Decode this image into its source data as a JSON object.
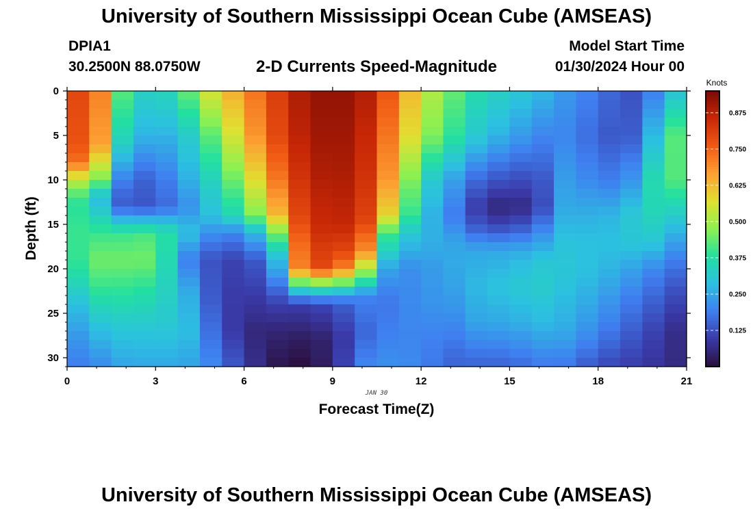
{
  "header": {
    "title": "University of Southern Mississippi Ocean Cube (AMSEAS)",
    "station": "DPIA1",
    "coordinates": "30.2500N  88.0750W",
    "subtitle": "2-D Currents Speed-Magnitude",
    "start_label": "Model Start Time",
    "start_value": "01/30/2024 Hour 00"
  },
  "footer": {
    "title": "University of Southern Mississippi Ocean Cube (AMSEAS)"
  },
  "chart_data": {
    "type": "heatmap",
    "title": "2-D Currents Speed-Magnitude",
    "xlabel": "Forecast Time(Z)",
    "ylabel": "Depth (ft)",
    "date_label": "JAN 30",
    "xlim": [
      0,
      21
    ],
    "ylim": [
      0,
      31
    ],
    "x_ticks": [
      0,
      3,
      6,
      9,
      12,
      15,
      18,
      21
    ],
    "y_ticks": [
      0,
      5,
      10,
      15,
      20,
      25,
      30
    ],
    "colorbar": {
      "label": "Knots",
      "range": [
        0.0,
        0.95
      ],
      "ticks": [
        "0.125",
        "0.250",
        "0.375",
        "0.500",
        "0.625",
        "0.750",
        "0.875"
      ],
      "colors": [
        "#2a0f3a",
        "#3a3aa8",
        "#3f7ff0",
        "#2cc0e0",
        "#22e0a0",
        "#8ef050",
        "#e0e030",
        "#fca032",
        "#f05a14",
        "#c82806",
        "#7a0a04"
      ]
    },
    "resolution": {
      "hours_per_cell": 0.75,
      "feet_per_cell": 1
    },
    "control_columns": {
      "hours": [
        0,
        1,
        2,
        3,
        4,
        5,
        6,
        7,
        8,
        9,
        10,
        11,
        12,
        13,
        14,
        15,
        16,
        17,
        18,
        19,
        20,
        21
      ],
      "profiles": [
        [
          [
            0,
            0.82
          ],
          [
            8,
            0.8
          ],
          [
            10,
            0.55
          ],
          [
            13,
            0.42
          ],
          [
            16,
            0.4
          ],
          [
            20,
            0.35
          ],
          [
            24,
            0.25
          ],
          [
            28,
            0.2
          ],
          [
            31,
            0.18
          ]
        ],
        [
          [
            0,
            0.75
          ],
          [
            6,
            0.72
          ],
          [
            10,
            0.5
          ],
          [
            12,
            0.3
          ],
          [
            16,
            0.4
          ],
          [
            19,
            0.45
          ],
          [
            22,
            0.4
          ],
          [
            26,
            0.3
          ],
          [
            31,
            0.2
          ]
        ],
        [
          [
            0,
            0.38
          ],
          [
            5,
            0.3
          ],
          [
            10,
            0.15
          ],
          [
            13,
            0.12
          ],
          [
            16,
            0.4
          ],
          [
            19,
            0.45
          ],
          [
            23,
            0.38
          ],
          [
            27,
            0.3
          ],
          [
            31,
            0.25
          ]
        ],
        [
          [
            0,
            0.3
          ],
          [
            5,
            0.25
          ],
          [
            10,
            0.15
          ],
          [
            13,
            0.14
          ],
          [
            16,
            0.42
          ],
          [
            19,
            0.45
          ],
          [
            23,
            0.36
          ],
          [
            27,
            0.3
          ],
          [
            31,
            0.25
          ]
        ],
        [
          [
            0,
            0.42
          ],
          [
            5,
            0.3
          ],
          [
            10,
            0.25
          ],
          [
            13,
            0.2
          ],
          [
            16,
            0.3
          ],
          [
            19,
            0.2
          ],
          [
            23,
            0.28
          ],
          [
            27,
            0.3
          ],
          [
            31,
            0.25
          ]
        ],
        [
          [
            0,
            0.58
          ],
          [
            5,
            0.45
          ],
          [
            10,
            0.35
          ],
          [
            14,
            0.3
          ],
          [
            16,
            0.2
          ],
          [
            19,
            0.12
          ],
          [
            23,
            0.12
          ],
          [
            27,
            0.15
          ],
          [
            31,
            0.2
          ]
        ],
        [
          [
            0,
            0.68
          ],
          [
            5,
            0.62
          ],
          [
            10,
            0.5
          ],
          [
            14,
            0.38
          ],
          [
            16,
            0.2
          ],
          [
            19,
            0.1
          ],
          [
            23,
            0.08
          ],
          [
            27,
            0.06
          ],
          [
            31,
            0.1
          ]
        ],
        [
          [
            0,
            0.8
          ],
          [
            5,
            0.78
          ],
          [
            10,
            0.7
          ],
          [
            14,
            0.6
          ],
          [
            16,
            0.4
          ],
          [
            19,
            0.2
          ],
          [
            23,
            0.12
          ],
          [
            27,
            0.05
          ],
          [
            31,
            0.02
          ]
        ],
        [
          [
            0,
            0.9
          ],
          [
            5,
            0.88
          ],
          [
            10,
            0.85
          ],
          [
            15,
            0.82
          ],
          [
            17,
            0.8
          ],
          [
            20,
            0.78
          ],
          [
            22,
            0.4
          ],
          [
            24,
            0.1
          ],
          [
            28,
            0.03
          ],
          [
            31,
            0.0
          ]
        ],
        [
          [
            0,
            0.93
          ],
          [
            5,
            0.92
          ],
          [
            10,
            0.9
          ],
          [
            15,
            0.87
          ],
          [
            17,
            0.84
          ],
          [
            20,
            0.8
          ],
          [
            22,
            0.4
          ],
          [
            24,
            0.12
          ],
          [
            28,
            0.05
          ],
          [
            31,
            0.05
          ]
        ],
        [
          [
            0,
            0.9
          ],
          [
            5,
            0.88
          ],
          [
            10,
            0.86
          ],
          [
            15,
            0.84
          ],
          [
            18,
            0.75
          ],
          [
            21,
            0.45
          ],
          [
            23,
            0.2
          ],
          [
            27,
            0.15
          ],
          [
            31,
            0.2
          ]
        ],
        [
          [
            0,
            0.75
          ],
          [
            5,
            0.7
          ],
          [
            10,
            0.65
          ],
          [
            14,
            0.55
          ],
          [
            16,
            0.35
          ],
          [
            20,
            0.2
          ],
          [
            24,
            0.18
          ],
          [
            28,
            0.2
          ],
          [
            31,
            0.22
          ]
        ],
        [
          [
            0,
            0.55
          ],
          [
            5,
            0.5
          ],
          [
            10,
            0.35
          ],
          [
            14,
            0.3
          ],
          [
            16,
            0.28
          ],
          [
            20,
            0.22
          ],
          [
            24,
            0.22
          ],
          [
            28,
            0.2
          ],
          [
            31,
            0.2
          ]
        ],
        [
          [
            0,
            0.45
          ],
          [
            5,
            0.4
          ],
          [
            10,
            0.25
          ],
          [
            14,
            0.2
          ],
          [
            17,
            0.25
          ],
          [
            20,
            0.25
          ],
          [
            24,
            0.22
          ],
          [
            28,
            0.18
          ],
          [
            31,
            0.15
          ]
        ],
        [
          [
            0,
            0.35
          ],
          [
            5,
            0.3
          ],
          [
            10,
            0.15
          ],
          [
            13,
            0.08
          ],
          [
            15,
            0.12
          ],
          [
            18,
            0.25
          ],
          [
            22,
            0.28
          ],
          [
            26,
            0.25
          ],
          [
            31,
            0.15
          ]
        ],
        [
          [
            0,
            0.32
          ],
          [
            5,
            0.25
          ],
          [
            10,
            0.12
          ],
          [
            13,
            0.04
          ],
          [
            15,
            0.1
          ],
          [
            18,
            0.25
          ],
          [
            22,
            0.3
          ],
          [
            26,
            0.25
          ],
          [
            31,
            0.15
          ]
        ],
        [
          [
            0,
            0.28
          ],
          [
            5,
            0.2
          ],
          [
            10,
            0.12
          ],
          [
            13,
            0.1
          ],
          [
            16,
            0.2
          ],
          [
            19,
            0.3
          ],
          [
            22,
            0.32
          ],
          [
            26,
            0.28
          ],
          [
            31,
            0.18
          ]
        ],
        [
          [
            0,
            0.22
          ],
          [
            5,
            0.2
          ],
          [
            10,
            0.25
          ],
          [
            14,
            0.28
          ],
          [
            17,
            0.3
          ],
          [
            20,
            0.3
          ],
          [
            23,
            0.28
          ],
          [
            27,
            0.25
          ],
          [
            31,
            0.18
          ]
        ],
        [
          [
            0,
            0.18
          ],
          [
            5,
            0.15
          ],
          [
            10,
            0.18
          ],
          [
            14,
            0.25
          ],
          [
            17,
            0.28
          ],
          [
            20,
            0.28
          ],
          [
            23,
            0.25
          ],
          [
            27,
            0.2
          ],
          [
            31,
            0.12
          ]
        ],
        [
          [
            0,
            0.12
          ],
          [
            5,
            0.12
          ],
          [
            10,
            0.2
          ],
          [
            14,
            0.3
          ],
          [
            17,
            0.3
          ],
          [
            20,
            0.25
          ],
          [
            23,
            0.2
          ],
          [
            27,
            0.15
          ],
          [
            31,
            0.1
          ]
        ],
        [
          [
            0,
            0.2
          ],
          [
            5,
            0.3
          ],
          [
            10,
            0.38
          ],
          [
            14,
            0.35
          ],
          [
            17,
            0.3
          ],
          [
            20,
            0.2
          ],
          [
            23,
            0.15
          ],
          [
            27,
            0.1
          ],
          [
            31,
            0.08
          ]
        ],
        [
          [
            0,
            0.35
          ],
          [
            5,
            0.5
          ],
          [
            10,
            0.45
          ],
          [
            14,
            0.3
          ],
          [
            17,
            0.2
          ],
          [
            20,
            0.15
          ],
          [
            23,
            0.1
          ],
          [
            27,
            0.05
          ],
          [
            31,
            0.05
          ]
        ]
      ]
    }
  }
}
